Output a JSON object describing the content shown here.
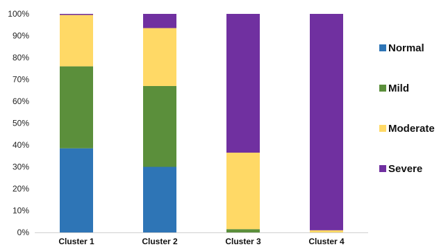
{
  "chart_data": {
    "type": "bar",
    "stacked": true,
    "categories": [
      "Cluster 1",
      "Cluster 2",
      "Cluster 3",
      "Cluster 4"
    ],
    "series": [
      {
        "name": "Normal",
        "color": "#2e75b6",
        "values": [
          38.5,
          30.0,
          0.0,
          0.0
        ]
      },
      {
        "name": "Mild",
        "color": "#5b8f3b",
        "values": [
          37.5,
          37.0,
          1.5,
          0.0
        ]
      },
      {
        "name": "Moderate",
        "color": "#ffd966",
        "values": [
          23.5,
          26.5,
          35.0,
          1.0
        ]
      },
      {
        "name": "Severe",
        "color": "#7030a0",
        "values": [
          0.5,
          6.5,
          63.5,
          99.0
        ]
      }
    ],
    "ylim": [
      0,
      100
    ],
    "yticks": [
      "0%",
      "10%",
      "20%",
      "30%",
      "40%",
      "50%",
      "60%",
      "70%",
      "80%",
      "90%",
      "100%"
    ],
    "legend_position": "right",
    "grid": false
  }
}
